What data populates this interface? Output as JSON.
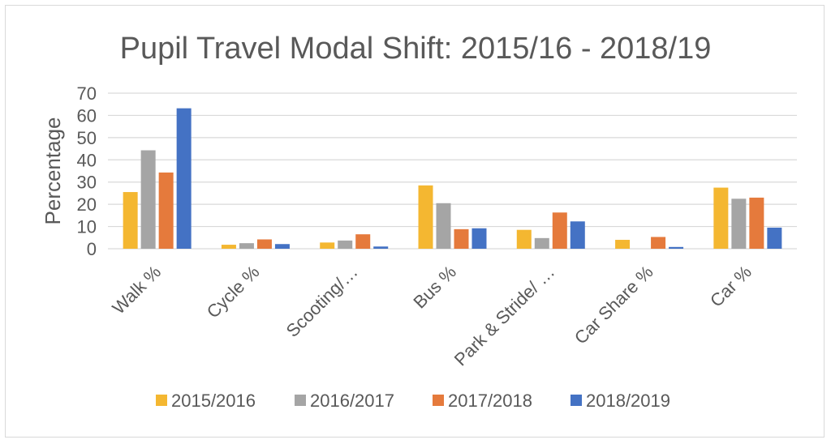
{
  "chart_data": {
    "type": "bar",
    "title": "Pupil Travel Modal Shift: 2015/16 - 2018/19",
    "xlabel": "",
    "ylabel": "Percentage",
    "ylim": [
      0,
      70
    ],
    "yticks": [
      0,
      10,
      20,
      30,
      40,
      50,
      60,
      70
    ],
    "grid": true,
    "legend_position": "bottom",
    "categories": [
      "Walk %",
      "Cycle %",
      "Scooting/…",
      "Bus %",
      "Park & Stride/ …",
      "Car Share %",
      "Car %"
    ],
    "series": [
      {
        "name": "2015/2016",
        "color": "#f4b731",
        "values": [
          25.5,
          1.8,
          2.8,
          28.5,
          8.5,
          4.0,
          27.5
        ]
      },
      {
        "name": "2016/2017",
        "color": "#a5a5a5",
        "values": [
          44.3,
          2.5,
          3.7,
          20.5,
          4.8,
          0,
          22.5
        ]
      },
      {
        "name": "2017/2018",
        "color": "#e57a3c",
        "values": [
          34.3,
          4.2,
          6.5,
          8.8,
          16.3,
          5.3,
          23.0
        ]
      },
      {
        "name": "2018/2019",
        "color": "#4472c4",
        "values": [
          63.2,
          2.1,
          1.0,
          9.2,
          12.3,
          0.8,
          9.5
        ]
      }
    ]
  }
}
